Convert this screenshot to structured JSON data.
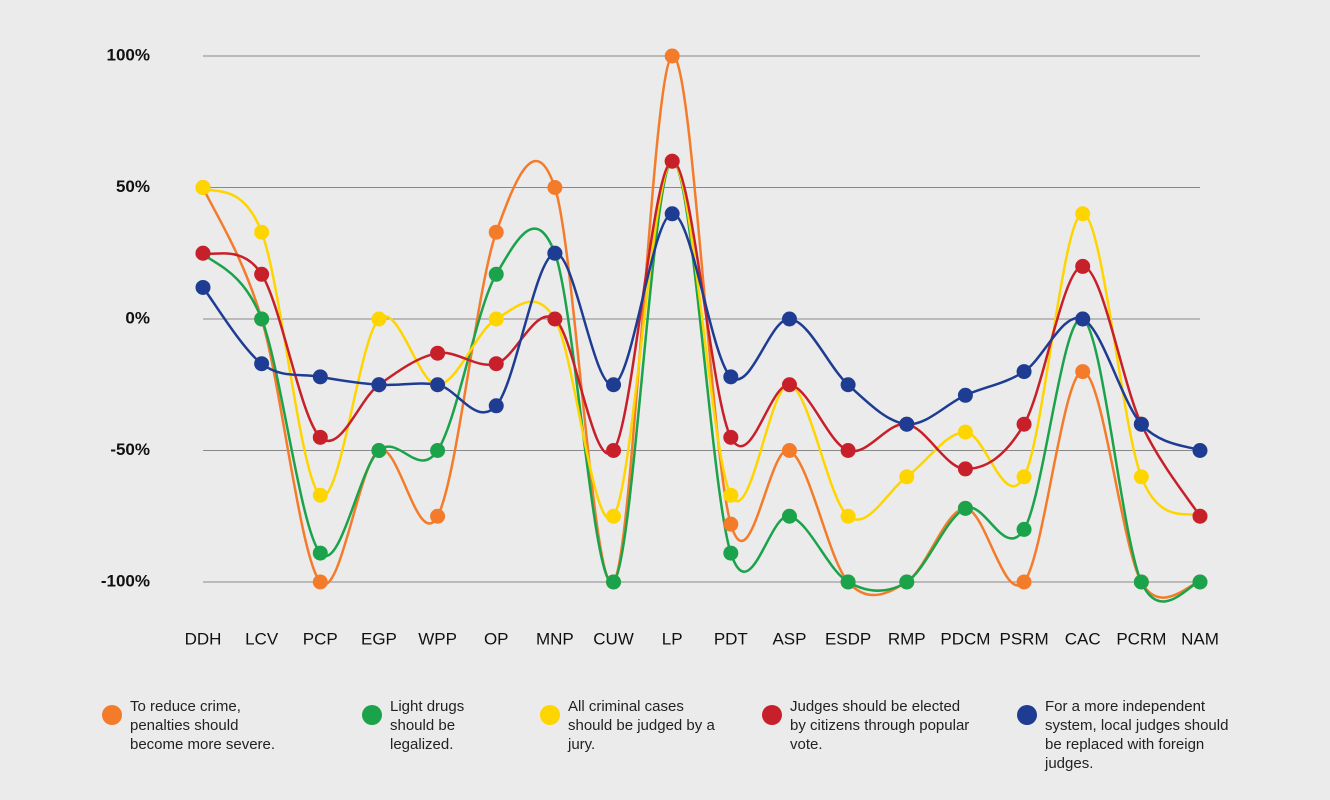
{
  "chart_data": {
    "type": "line",
    "categories": [
      "DDH",
      "LCV",
      "PCP",
      "EGP",
      "WPP",
      "OP",
      "MNP",
      "CUW",
      "LP",
      "PDT",
      "ASP",
      "ESDP",
      "RMP",
      "PDCM",
      "PSRM",
      "CAC",
      "PCRM",
      "NAM"
    ],
    "ylim": [
      -100,
      100
    ],
    "yticks": [
      {
        "value": -100,
        "label": "-100%"
      },
      {
        "value": -50,
        "label": "-50%"
      },
      {
        "value": 0,
        "label": "0%"
      },
      {
        "value": 50,
        "label": "50%"
      },
      {
        "value": 100,
        "label": "100%"
      }
    ],
    "grid": true,
    "smooth": true,
    "legend": "bottom",
    "series": [
      {
        "name": "To reduce crime, penalties should become more severe.",
        "color": "#f47b2a",
        "values": [
          50,
          0,
          -100,
          -50,
          -75,
          33,
          50,
          -100,
          100,
          -78,
          -50,
          -100,
          -100,
          -72,
          -100,
          -20,
          -100,
          -100
        ]
      },
      {
        "name": "Light drugs should be legalized.",
        "color": "#1aa34a",
        "values": [
          25,
          0,
          -89,
          -50,
          -50,
          17,
          25,
          -100,
          60,
          -89,
          -75,
          -100,
          -100,
          -72,
          -80,
          0,
          -100,
          -100
        ]
      },
      {
        "name": "All criminal cases should be judged by a jury.",
        "color": "#ffd500",
        "values": [
          50,
          33,
          -67,
          0,
          -25,
          0,
          0,
          -75,
          60,
          -67,
          -25,
          -75,
          -60,
          -43,
          -60,
          40,
          -60,
          -75
        ]
      },
      {
        "name": "Judges should be elected by citizens through popular vote.",
        "color": "#c8202a",
        "values": [
          25,
          17,
          -45,
          -25,
          -13,
          -17,
          0,
          -50,
          60,
          -45,
          -25,
          -50,
          -40,
          -57,
          -40,
          20,
          -40,
          -75
        ]
      },
      {
        "name": "For a more independent system, local judges should be replaced with foreign judges.",
        "color": "#1f3c93",
        "values": [
          12,
          -17,
          -22,
          -25,
          -25,
          -33,
          25,
          -25,
          40,
          -22,
          0,
          -25,
          -40,
          -29,
          -20,
          0,
          -40,
          -50
        ]
      }
    ]
  }
}
